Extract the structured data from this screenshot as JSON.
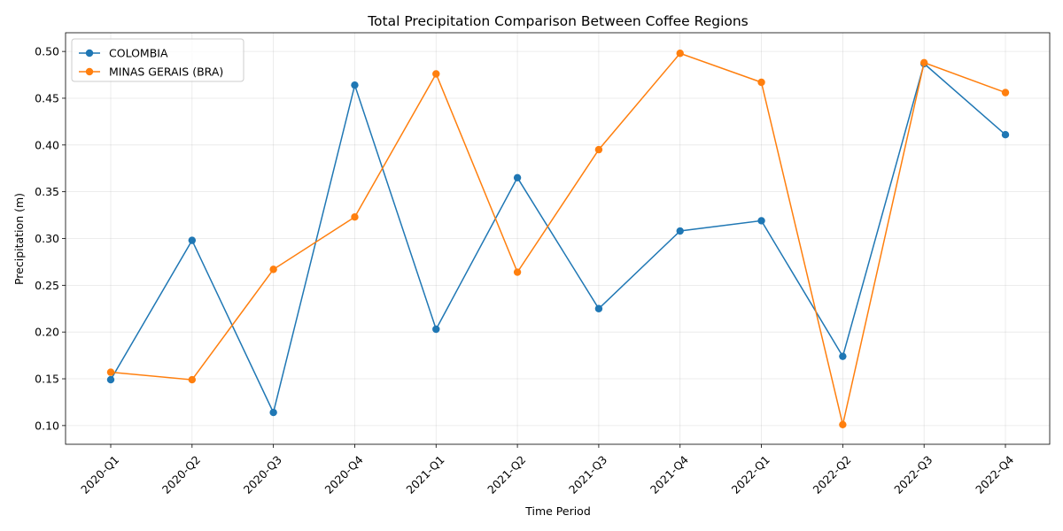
{
  "chart_data": {
    "type": "line",
    "title": "Total Precipitation Comparison Between Coffee Regions",
    "xlabel": "Time Period",
    "ylabel": "Precipitation (m)",
    "categories": [
      "2020-Q1",
      "2020-Q2",
      "2020-Q3",
      "2020-Q4",
      "2021-Q1",
      "2021-Q2",
      "2021-Q3",
      "2021-Q4",
      "2022-Q1",
      "2022-Q2",
      "2022-Q3",
      "2022-Q4"
    ],
    "series": [
      {
        "name": "COLOMBIA",
        "color": "#1f77b4",
        "values": [
          0.149,
          0.298,
          0.114,
          0.464,
          0.203,
          0.365,
          0.225,
          0.308,
          0.319,
          0.174,
          0.487,
          0.411
        ]
      },
      {
        "name": "MINAS GERAIS (BRA)",
        "color": "#ff7f0e",
        "values": [
          0.157,
          0.149,
          0.267,
          0.323,
          0.476,
          0.264,
          0.395,
          0.498,
          0.467,
          0.101,
          0.488,
          0.456
        ]
      }
    ],
    "ylim": [
      0.08,
      0.52
    ],
    "yticks": [
      "0.10",
      "0.15",
      "0.20",
      "0.25",
      "0.30",
      "0.35",
      "0.40",
      "0.45",
      "0.50"
    ],
    "grid": true,
    "legend_position": "upper-left"
  }
}
